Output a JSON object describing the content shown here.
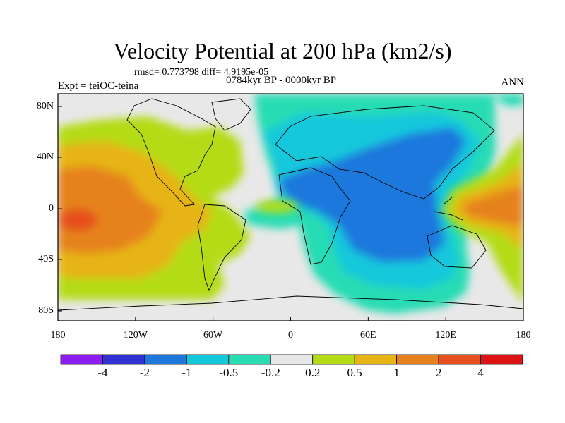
{
  "figure": {
    "title": "Velocity Potential at 200 hPa (km2/s)",
    "stats": "rmsd= 0.773798 diff= 4.9195e-05",
    "experiment": "Expt = teiOC-teina",
    "period": "0784kyr BP - 0000kyr BP",
    "season": "ANN"
  },
  "axes": {
    "x_ticks": [
      "180",
      "120W",
      "60W",
      "0",
      "60E",
      "120E",
      "180"
    ],
    "y_ticks": [
      "80N",
      "40N",
      "0",
      "40S",
      "80S"
    ]
  },
  "colorbar": {
    "labels": [
      "-4",
      "-2",
      "-1",
      "-0.5",
      "-0.2",
      "0.2",
      "0.5",
      "1",
      "2",
      "4"
    ],
    "colors": [
      "#8c1cf0",
      "#3232d2",
      "#1e78dc",
      "#14c8dc",
      "#28dcb4",
      "#e8e8e8",
      "#b4dc14",
      "#e6b414",
      "#e6821e",
      "#e6501e",
      "#dc1414"
    ]
  },
  "map_colors": {
    "neutral": "#e8e8e8",
    "pos_0_2": "#b4dc14",
    "pos_0_5": "#e6b414",
    "pos_1": "#e6821e",
    "pos_2": "#e6501e",
    "neg_0_2": "#28dcb4",
    "neg_0_5": "#14c8dc",
    "neg_1": "#1e78dc"
  }
}
